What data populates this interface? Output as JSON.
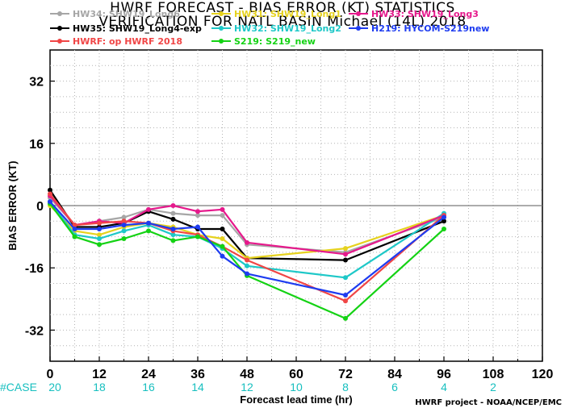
{
  "chart_data": {
    "type": "line",
    "title": "HWRF FORECAST - BIAS ERROR (KT) STATISTICS",
    "subtitle": "VERIFICATION FOR NATL BASIN  Michael (14L) 2018",
    "xlabel": "Forecast lead time (hr)",
    "ylabel": "BIAS ERROR (KT)",
    "xlim": [
      0,
      120
    ],
    "ylim": [
      -40,
      40
    ],
    "xticks": [
      0,
      12,
      24,
      36,
      48,
      60,
      72,
      84,
      96,
      108,
      120
    ],
    "yticks": [
      -32,
      -16,
      0,
      16,
      32
    ],
    "grid": true,
    "legend_position": "top",
    "case_label": "#CASE",
    "cases": [
      20,
      18,
      16,
      14,
      12,
      10,
      8,
      6,
      4,
      2
    ],
    "credit": "HWRF project - NOAA/NCEP/EMC",
    "series": [
      {
        "name": "HW34: SHW19_Long6",
        "color": "#a6a6a6",
        "x": [
          0,
          6,
          12,
          18,
          24,
          30,
          36,
          42,
          48,
          72,
          96
        ],
        "y": [
          2,
          -5,
          -4,
          -3,
          -1,
          -2,
          -2.5,
          -2.5,
          -10,
          -12,
          -3
        ]
      },
      {
        "name": "HW35: SHW19_Long4-exp",
        "color": "#000000",
        "x": [
          0,
          6,
          12,
          18,
          24,
          30,
          36,
          42,
          48,
          72,
          96
        ],
        "y": [
          4,
          -5.5,
          -5.5,
          -4.5,
          -1.5,
          -3.5,
          -6,
          -6,
          -13.5,
          -14,
          -4
        ]
      },
      {
        "name": "HW31: SHW19_Long1",
        "color": "#e6d21e",
        "x": [
          0,
          6,
          12,
          18,
          24,
          30,
          36,
          42,
          48,
          72,
          96
        ],
        "y": [
          0,
          -6.5,
          -7.5,
          -5.5,
          -4.5,
          -5.5,
          -7.5,
          -8.5,
          -13.5,
          -11,
          -2.5
        ]
      },
      {
        "name": "HW32: SHW19_Long2",
        "color": "#1ec8c8",
        "x": [
          0,
          6,
          12,
          18,
          24,
          30,
          36,
          42,
          48,
          72,
          96
        ],
        "y": [
          1,
          -7.5,
          -8.5,
          -6.5,
          -5,
          -7.5,
          -8,
          -11,
          -15.5,
          -18.5,
          -2
        ]
      },
      {
        "name": "HW33: SHW19_Long3",
        "color": "#e6198c",
        "x": [
          0,
          6,
          12,
          18,
          24,
          30,
          36,
          42,
          48,
          72,
          96
        ],
        "y": [
          2.5,
          -5,
          -4,
          -4.5,
          -1,
          0,
          -1.5,
          -1,
          -9.5,
          -12.5,
          -2.5
        ]
      },
      {
        "name": "HWRF: op HWRF 2018",
        "color": "#f04646",
        "x": [
          0,
          6,
          12,
          18,
          24,
          30,
          36,
          42,
          48,
          72,
          96
        ],
        "y": [
          3,
          -5,
          -4.5,
          -4,
          -4.5,
          -6.5,
          -7.5,
          -10.5,
          -14,
          -24.5,
          -2.5
        ]
      },
      {
        "name": "S219: S219_new",
        "color": "#14d214",
        "x": [
          0,
          6,
          12,
          18,
          24,
          30,
          36,
          42,
          48,
          72,
          96
        ],
        "y": [
          0.5,
          -8,
          -10,
          -8.5,
          -6.5,
          -9,
          -8,
          -10.5,
          -18,
          -29,
          -6
        ]
      },
      {
        "name": "H219: HYCOM-S219new",
        "color": "#1e3cf0",
        "x": [
          0,
          6,
          12,
          18,
          24,
          30,
          36,
          42,
          48,
          72,
          96
        ],
        "y": [
          1,
          -6,
          -6,
          -5,
          -4.5,
          -6,
          -5.5,
          -13,
          -17.5,
          -23,
          -3
        ]
      }
    ]
  }
}
